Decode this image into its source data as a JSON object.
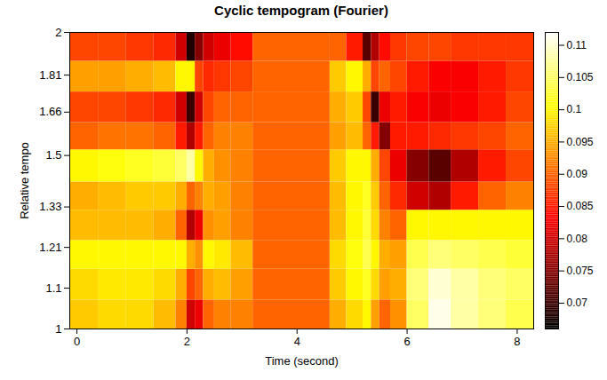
{
  "chart_data": {
    "type": "heatmap",
    "title": "Cyclic tempogram (Fourier)",
    "x_label": "Time (second)",
    "y_label": "Relative tempo",
    "xlim": [
      -0.13,
      8.3
    ],
    "ylim": [
      1,
      2
    ],
    "xticks": [
      0,
      2,
      4,
      6,
      8
    ],
    "yticks": [
      1,
      1.1,
      1.21,
      1.33,
      1.5,
      1.66,
      1.81,
      2
    ],
    "log": "y",
    "x_edges": [
      -0.13,
      0.4,
      0.9,
      1.4,
      1.8,
      2.0,
      2.15,
      2.3,
      2.5,
      2.8,
      3.2,
      4.6,
      4.9,
      5.2,
      5.35,
      5.5,
      5.7,
      6.0,
      6.4,
      6.8,
      7.3,
      7.8,
      8.3
    ],
    "y_edges": [
      1,
      1.07,
      1.15,
      1.23,
      1.32,
      1.41,
      1.52,
      1.62,
      1.74,
      1.87,
      2
    ],
    "z": [
      [
        0.097,
        0.098,
        0.098,
        0.096,
        0.092,
        0.08,
        0.082,
        0.09,
        0.092,
        0.092,
        0.09,
        0.095,
        0.098,
        0.1,
        0.094,
        0.09,
        0.093,
        0.105,
        0.111,
        0.108,
        0.106,
        0.104
      ],
      [
        0.098,
        0.099,
        0.099,
        0.098,
        0.095,
        0.088,
        0.09,
        0.095,
        0.096,
        0.094,
        0.09,
        0.097,
        0.1,
        0.102,
        0.098,
        0.094,
        0.095,
        0.106,
        0.11,
        0.108,
        0.106,
        0.105
      ],
      [
        0.1,
        0.1,
        0.1,
        0.1,
        0.1,
        0.095,
        0.093,
        0.1,
        0.099,
        0.096,
        0.09,
        0.098,
        0.101,
        0.104,
        0.1,
        0.095,
        0.094,
        0.104,
        0.106,
        0.105,
        0.104,
        0.103
      ],
      [
        0.096,
        0.096,
        0.096,
        0.095,
        0.09,
        0.078,
        0.082,
        0.093,
        0.094,
        0.092,
        0.09,
        0.096,
        0.1,
        0.103,
        0.098,
        0.092,
        0.09,
        0.1,
        0.1,
        0.1,
        0.1,
        0.1
      ],
      [
        0.095,
        0.096,
        0.097,
        0.097,
        0.095,
        0.09,
        0.092,
        0.095,
        0.094,
        0.092,
        0.09,
        0.096,
        0.1,
        0.102,
        0.097,
        0.09,
        0.086,
        0.08,
        0.078,
        0.085,
        0.09,
        0.092
      ],
      [
        0.1,
        0.101,
        0.102,
        0.103,
        0.105,
        0.108,
        0.1,
        0.095,
        0.093,
        0.092,
        0.09,
        0.097,
        0.1,
        0.1,
        0.095,
        0.088,
        0.082,
        0.075,
        0.072,
        0.078,
        0.085,
        0.088
      ],
      [
        0.09,
        0.091,
        0.091,
        0.09,
        0.085,
        0.078,
        0.085,
        0.09,
        0.092,
        0.092,
        0.09,
        0.094,
        0.096,
        0.09,
        0.085,
        0.075,
        0.085,
        0.085,
        0.086,
        0.087,
        0.088,
        0.09
      ],
      [
        0.088,
        0.088,
        0.087,
        0.086,
        0.08,
        0.07,
        0.08,
        0.088,
        0.09,
        0.09,
        0.09,
        0.095,
        0.097,
        0.088,
        0.07,
        0.082,
        0.085,
        0.083,
        0.082,
        0.083,
        0.085,
        0.088
      ],
      [
        0.094,
        0.094,
        0.095,
        0.096,
        0.1,
        0.1,
        0.088,
        0.086,
        0.087,
        0.088,
        0.09,
        0.097,
        0.1,
        0.095,
        0.088,
        0.09,
        0.088,
        0.085,
        0.083,
        0.083,
        0.085,
        0.087
      ],
      [
        0.088,
        0.088,
        0.087,
        0.086,
        0.08,
        0.068,
        0.075,
        0.08,
        0.082,
        0.084,
        0.09,
        0.09,
        0.085,
        0.072,
        0.078,
        0.084,
        0.087,
        0.088,
        0.088,
        0.087,
        0.087,
        0.087
      ]
    ],
    "colorbar": {
      "range": [
        0.066,
        0.112
      ],
      "ticks": [
        0.07,
        0.075,
        0.08,
        0.085,
        0.09,
        0.095,
        0.1,
        0.105,
        0.11
      ]
    }
  }
}
